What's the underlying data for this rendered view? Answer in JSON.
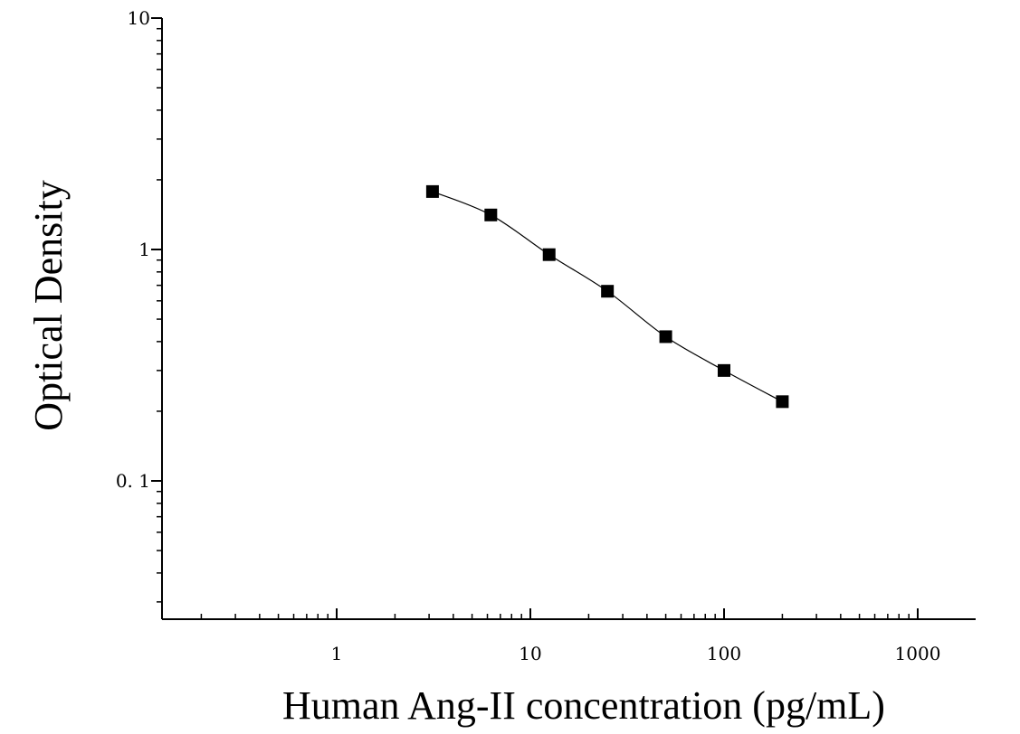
{
  "chart_data": {
    "type": "scatter",
    "title": "",
    "xlabel": "Human Ang-II concentration (pg/mL)",
    "ylabel": "Optical Density",
    "x_scale": "log",
    "y_scale": "log",
    "xlim": [
      0.15,
      2000
    ],
    "ylim": [
      0.03,
      10
    ],
    "x_ticks": [
      {
        "value": 1,
        "label": "1"
      },
      {
        "value": 10,
        "label": "10"
      },
      {
        "value": 100,
        "label": "100"
      },
      {
        "value": 1000,
        "label": "1000"
      }
    ],
    "y_ticks": [
      {
        "value": 0.1,
        "label": "0. 1"
      },
      {
        "value": 1,
        "label": "1"
      },
      {
        "value": 10,
        "label": "10"
      }
    ],
    "grid": false,
    "legend": "none",
    "marker": "square",
    "color": "#000000",
    "series": [
      {
        "points": [
          {
            "x": 3.125,
            "y": 1.78
          },
          {
            "x": 6.25,
            "y": 1.41
          },
          {
            "x": 12.5,
            "y": 0.95
          },
          {
            "x": 25,
            "y": 0.66
          },
          {
            "x": 50,
            "y": 0.42
          },
          {
            "x": 100,
            "y": 0.3
          },
          {
            "x": 200,
            "y": 0.22
          }
        ],
        "fit_curve": true
      }
    ]
  }
}
